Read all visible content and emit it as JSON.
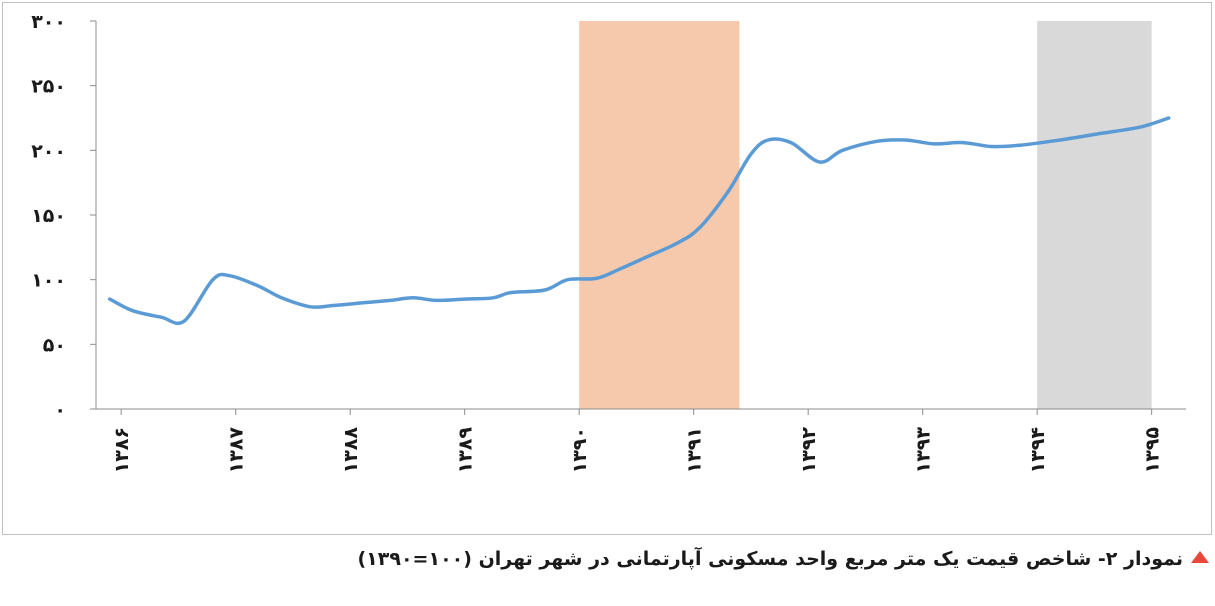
{
  "chart_data": {
    "type": "line",
    "title": "",
    "xlabel": "",
    "ylabel": "",
    "ylim": [
      0,
      300
    ],
    "y_ticks": [
      "۰",
      "۵۰",
      "۱۰۰",
      "۱۵۰",
      "۲۰۰",
      "۲۵۰",
      "۳۰۰"
    ],
    "y_tick_values": [
      0,
      50,
      100,
      150,
      200,
      250,
      300
    ],
    "x_ticks": [
      "۱۳۸۶",
      "۱۳۸۷",
      "۱۳۸۸",
      "۱۳۸۹",
      "۱۳۹۰",
      "۱۳۹۱",
      "۱۳۹۲",
      "۱۳۹۳",
      "۱۳۹۴",
      "۱۳۹۵"
    ],
    "x_tick_values": [
      1386,
      1387,
      1388,
      1389,
      1390,
      1391,
      1392,
      1393,
      1394,
      1395
    ],
    "grid": false,
    "legend": "none",
    "series": [
      {
        "color": "#5b9bd5",
        "x": [
          1385.9,
          1386.1,
          1386.35,
          1386.55,
          1386.8,
          1386.95,
          1387.2,
          1387.4,
          1387.65,
          1387.85,
          1388.1,
          1388.35,
          1388.55,
          1388.75,
          1389.0,
          1389.25,
          1389.4,
          1389.7,
          1389.9,
          1390.15,
          1390.35,
          1390.6,
          1390.85,
          1391.05,
          1391.3,
          1391.5,
          1391.65,
          1391.85,
          1392.1,
          1392.3,
          1392.6,
          1392.85,
          1393.1,
          1393.35,
          1393.6,
          1393.85,
          1394.2,
          1394.55,
          1394.9,
          1395.15
        ],
        "values": [
          85,
          76,
          71,
          68,
          100,
          103,
          95,
          86,
          79,
          80,
          82,
          84,
          86,
          84,
          85,
          86,
          90,
          92,
          100,
          101,
          108,
          118,
          128,
          140,
          168,
          197,
          208,
          206,
          191,
          200,
          207,
          208,
          205,
          206,
          203,
          204,
          208,
          213,
          218,
          225
        ]
      }
    ],
    "shaded_ranges": [
      {
        "from": 1390.0,
        "to": 1391.4,
        "color": "#f7c9ac"
      },
      {
        "from": 1394.0,
        "to": 1395.0,
        "color": "#d9d9d9"
      }
    ]
  },
  "caption": {
    "text": "نمودار ۲- شاخص قیمت یک متر مربع واحد مسکونی آپارتمانی در شهر تهران (۱۰۰=۱۳۹۰)",
    "marker_color": "#e8483b"
  }
}
